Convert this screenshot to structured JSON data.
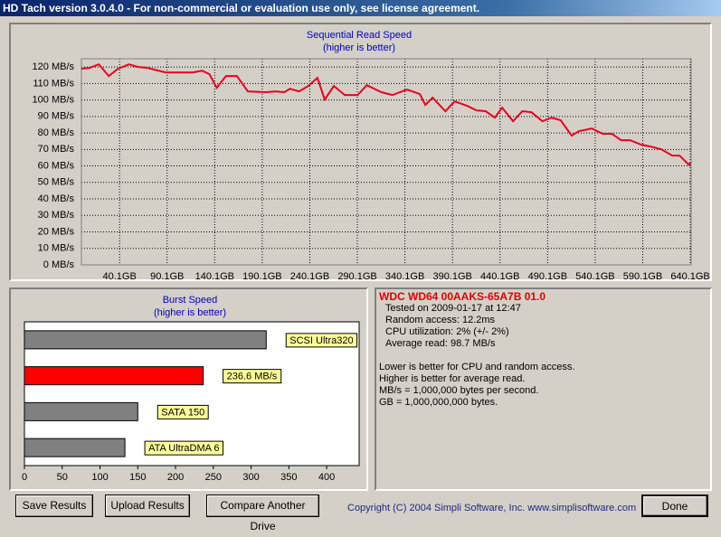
{
  "window": {
    "title": "HD Tach version 3.0.4.0  - For non-commercial or evaluation use only, see license agreement."
  },
  "chart_data": [
    {
      "type": "line",
      "title": "Sequential Read Speed",
      "subtitle": "(higher is better)",
      "x": [
        0,
        8.7,
        18.3,
        28.8,
        38.5,
        50,
        59.6,
        69.2,
        88.5,
        117.3,
        126.9,
        134.6,
        142.3,
        151.9,
        163.5,
        175,
        194.2,
        203.8,
        213.5,
        219.2,
        228.8,
        238.5,
        248.1,
        255.8,
        265.4,
        276.9,
        290.4,
        300,
        315.4,
        326.9,
        342.3,
        355.8,
        361.5,
        369.2,
        382.7,
        392.3,
        405.8,
        415.4,
        425,
        434.6,
        442.3,
        453.8,
        463.5,
        473.1,
        484.6,
        494.2,
        503.8,
        515.4,
        523.1,
        536.5,
        548.1,
        557.7,
        567.3,
        576.9,
        588.5,
        598.1,
        609.6,
        621.2,
        628.8,
        638.5,
        640.1
      ],
      "series": [
        {
          "name": "Read speed",
          "color": "#e8001c",
          "values": [
            119,
            119.5,
            121.6,
            114.5,
            119,
            121.6,
            120,
            119.5,
            116.7,
            116.7,
            117.8,
            115.6,
            107.4,
            114.5,
            114.5,
            105.2,
            104.7,
            105.2,
            104.7,
            106.8,
            105.2,
            108.5,
            113.4,
            100.3,
            108.5,
            103,
            103,
            109,
            104.7,
            103,
            106.3,
            103.6,
            97,
            101.4,
            93.2,
            99.2,
            96.4,
            93.7,
            93.2,
            89.3,
            95.3,
            87.1,
            93.2,
            92.6,
            87.1,
            89.3,
            87.7,
            78.4,
            81.1,
            82.7,
            79.5,
            79.5,
            75.6,
            75.6,
            72.9,
            71.8,
            70.1,
            66.3,
            66.3,
            60.8,
            61.9
          ]
        }
      ],
      "xlim": [
        0,
        641
      ],
      "ylim": [
        0,
        125
      ],
      "xticks": [
        {
          "value": 40.1,
          "label": "40.1GB"
        },
        {
          "value": 90.1,
          "label": "90.1GB"
        },
        {
          "value": 140.1,
          "label": "140.1GB"
        },
        {
          "value": 190.1,
          "label": "190.1GB"
        },
        {
          "value": 240.1,
          "label": "240.1GB"
        },
        {
          "value": 290.1,
          "label": "290.1GB"
        },
        {
          "value": 340.1,
          "label": "340.1GB"
        },
        {
          "value": 390.1,
          "label": "390.1GB"
        },
        {
          "value": 440.1,
          "label": "440.1GB"
        },
        {
          "value": 490.1,
          "label": "490.1GB"
        },
        {
          "value": 540.1,
          "label": "540.1GB"
        },
        {
          "value": 590.1,
          "label": "590.1GB"
        },
        {
          "value": 640.1,
          "label": "640.1GB"
        }
      ],
      "yticks": [
        {
          "value": 0,
          "label": "0 MB/s"
        },
        {
          "value": 10,
          "label": "10 MB/s"
        },
        {
          "value": 20,
          "label": "20 MB/s"
        },
        {
          "value": 30,
          "label": "30 MB/s"
        },
        {
          "value": 40,
          "label": "40 MB/s"
        },
        {
          "value": 50,
          "label": "50 MB/s"
        },
        {
          "value": 60,
          "label": "60 MB/s"
        },
        {
          "value": 70,
          "label": "70 MB/s"
        },
        {
          "value": 80,
          "label": "80 MB/s"
        },
        {
          "value": 90,
          "label": "90 MB/s"
        },
        {
          "value": 100,
          "label": "100 MB/s"
        },
        {
          "value": 110,
          "label": "110 MB/s"
        },
        {
          "value": 120,
          "label": "120 MB/s"
        }
      ],
      "grid": true
    },
    {
      "type": "hbar",
      "title": "Burst Speed",
      "subtitle": "(higher is better)",
      "categories": [
        "SCSI Ultra320",
        "236.6 MB/s",
        "SATA 150",
        "ATA UltraDMA 6"
      ],
      "values": [
        320,
        236.6,
        150,
        133
      ],
      "colors": [
        "#808080",
        "#ff0000",
        "#808080",
        "#808080"
      ],
      "xlim": [
        0,
        443
      ],
      "xticks": [
        0,
        50,
        100,
        150,
        200,
        250,
        300,
        350,
        400
      ]
    }
  ],
  "info": {
    "drive": "WDC WD64 00AAKS-65A7B 01.0",
    "results": [
      "Tested on 2009-01-17 at 12:47",
      "Random access: 12.2ms",
      "CPU utilization: 2% (+/- 2%)",
      "Average read: 98.7 MB/s"
    ],
    "notes": [
      "Lower is better for CPU and random access.",
      "Higher is better for average read.",
      "MB/s = 1,000,000 bytes per second.",
      "GB = 1,000,000,000 bytes."
    ]
  },
  "buttons": [
    "Save Results",
    "Upload Results",
    "Compare Another Drive",
    "Done"
  ],
  "copyright": "Copyright (C) 2004 Simpli Software, Inc. www.simplisoftware.com"
}
